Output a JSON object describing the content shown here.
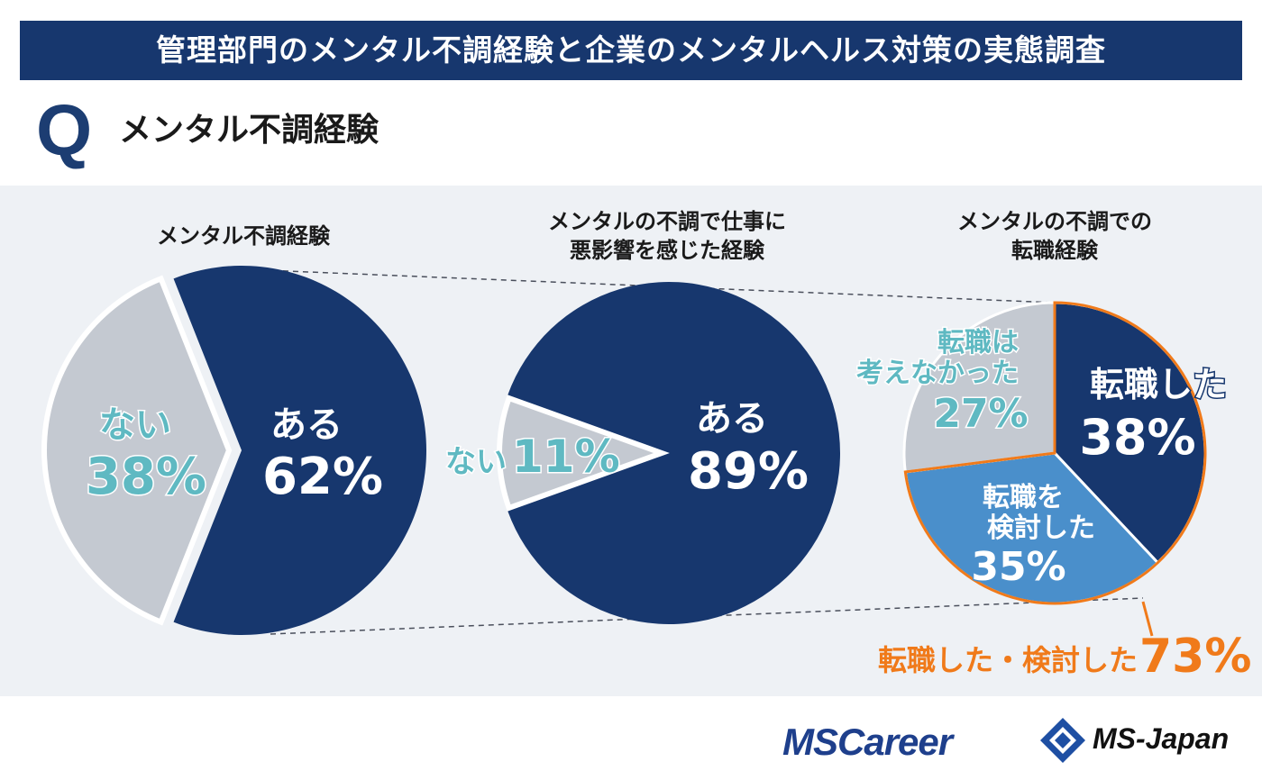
{
  "header": {
    "title": "管理部門のメンタル不調経験と企業のメンタルヘルス対策の実態調査"
  },
  "question": {
    "mark": "Q",
    "text": "メンタル不調経験"
  },
  "colors": {
    "navy": "#17376e",
    "gray": "#c4c9d1",
    "blue": "#4a8fcb",
    "teal": "#5fb9c2",
    "orange": "#f07a1a",
    "panel": "#eef1f5"
  },
  "chart_data": [
    {
      "type": "pie",
      "title": "メンタル不調経験",
      "slices": [
        {
          "label": "ある",
          "value": 62,
          "value_label": "62%"
        },
        {
          "label": "ない",
          "value": 38,
          "value_label": "38%"
        }
      ]
    },
    {
      "type": "pie",
      "title": "メンタルの不調で仕事に悪影響を感じた経験",
      "title_lines": [
        "メンタルの不調で仕事に",
        "悪影響を感じた経験"
      ],
      "slices": [
        {
          "label": "ある",
          "value": 89,
          "value_label": "89%"
        },
        {
          "label": "ない",
          "value": 11,
          "value_label": "11%"
        }
      ]
    },
    {
      "type": "pie",
      "title": "メンタルの不調での転職経験",
      "title_lines": [
        "メンタルの不調での",
        "転職経験"
      ],
      "slices": [
        {
          "label": "転職した",
          "value": 38,
          "value_label": "38%"
        },
        {
          "label": "転職を検討した",
          "label_lines": [
            "転職を",
            "検討した"
          ],
          "value": 35,
          "value_label": "35%"
        },
        {
          "label": "転職は考えなかった",
          "label_lines": [
            "転職は",
            "考えなかった"
          ],
          "value": 27,
          "value_label": "27%"
        }
      ],
      "annotation": {
        "text": "転職した・検討した",
        "value": "73%"
      }
    }
  ],
  "footer": {
    "brand1": "MSCareer",
    "brand2": "MS-Japan"
  }
}
